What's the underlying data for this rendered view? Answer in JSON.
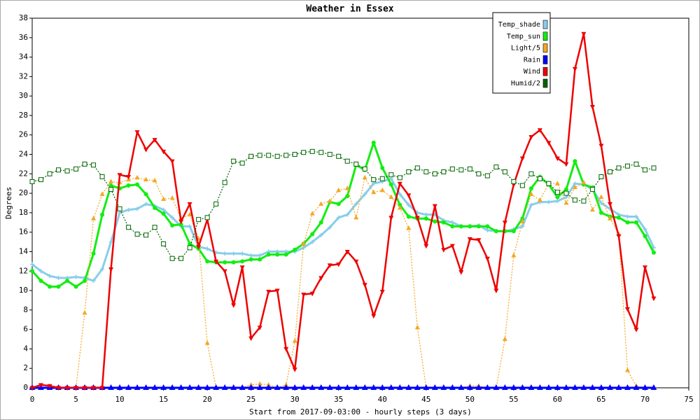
{
  "chart_data": {
    "type": "line",
    "title": "Weather in Essex",
    "x_label": "Start from 2017-09-03:00 - hourly steps (3 days)",
    "y_label": "Degrees",
    "x": [
      0,
      1,
      2,
      3,
      4,
      5,
      6,
      7,
      8,
      9,
      10,
      11,
      12,
      13,
      14,
      15,
      16,
      17,
      18,
      19,
      20,
      21,
      22,
      23,
      24,
      25,
      26,
      27,
      28,
      29,
      30,
      31,
      32,
      33,
      34,
      35,
      36,
      37,
      38,
      39,
      40,
      41,
      42,
      43,
      44,
      45,
      46,
      47,
      48,
      49,
      50,
      51,
      52,
      53,
      54,
      55,
      56,
      57,
      58,
      59,
      60,
      61,
      62,
      63,
      64,
      65,
      66,
      67,
      68,
      69,
      70,
      71
    ],
    "xlim": [
      0,
      75
    ],
    "xticks": [
      0,
      5,
      10,
      15,
      20,
      25,
      30,
      35,
      40,
      45,
      50,
      55,
      60,
      65,
      70,
      75
    ],
    "ylim": [
      0,
      38
    ],
    "yticks": [
      0,
      2,
      4,
      6,
      8,
      10,
      12,
      14,
      16,
      18,
      20,
      22,
      24,
      26,
      28,
      30,
      32,
      34,
      36,
      38
    ],
    "legend": "top right",
    "grid": false,
    "series": [
      {
        "name": "Temp_shade",
        "color": "#87ceeb",
        "values": [
          12.7,
          12.0,
          11.5,
          11.3,
          11.3,
          11.4,
          11.3,
          11.0,
          12.2,
          15.0,
          18.0,
          18.3,
          18.4,
          18.9,
          18.7,
          18.3,
          17.5,
          16.6,
          16.6,
          14.5,
          14.3,
          13.9,
          13.8,
          13.8,
          13.8,
          13.6,
          13.6,
          14.0,
          14.0,
          14.0,
          14.0,
          14.4,
          15.0,
          15.7,
          16.5,
          17.5,
          17.8,
          18.9,
          19.9,
          21.0,
          21.2,
          21.5,
          19.9,
          18.8,
          18.0,
          17.8,
          17.8,
          17.2,
          17.0,
          16.6,
          16.6,
          16.7,
          16.2,
          16.1,
          16.1,
          16.3,
          16.6,
          18.8,
          19.1,
          19.1,
          19.2,
          19.6,
          21.0,
          20.9,
          20.4,
          19.0,
          18.4,
          17.8,
          17.6,
          17.6,
          16.3,
          14.4
        ]
      },
      {
        "name": "Temp_sun",
        "color": "#11ee11",
        "values": [
          12.0,
          11.0,
          10.4,
          10.4,
          11.0,
          10.4,
          11.0,
          13.8,
          17.8,
          20.8,
          20.5,
          20.8,
          20.9,
          19.9,
          18.5,
          17.9,
          16.7,
          16.8,
          14.8,
          14.3,
          13.0,
          12.9,
          12.9,
          12.9,
          13.0,
          13.2,
          13.2,
          13.7,
          13.7,
          13.7,
          14.2,
          14.8,
          15.8,
          17.0,
          19.1,
          18.9,
          19.7,
          22.9,
          22.4,
          25.2,
          22.6,
          20.9,
          18.8,
          17.6,
          17.4,
          17.4,
          17.1,
          17.0,
          16.6,
          16.6,
          16.6,
          16.6,
          16.6,
          16.1,
          16.1,
          16.1,
          17.4,
          20.5,
          21.7,
          20.9,
          19.6,
          20.4,
          23.3,
          20.9,
          20.6,
          18.0,
          17.6,
          17.5,
          17.0,
          17.0,
          15.6,
          13.9
        ]
      },
      {
        "name": "Light/5",
        "color": "#f5a623",
        "values": [
          0,
          0,
          0,
          0,
          0,
          0,
          7.7,
          17.4,
          19.9,
          21.2,
          21.1,
          21.4,
          21.6,
          21.4,
          21.3,
          19.4,
          19.5,
          17.4,
          17.8,
          15.3,
          4.6,
          0,
          0,
          0,
          0,
          0.3,
          0.4,
          0.3,
          0,
          0.3,
          4.8,
          14.8,
          17.9,
          18.9,
          19.2,
          20.3,
          20.5,
          17.5,
          21.6,
          20.1,
          20.3,
          19.6,
          18.5,
          16.4,
          6.2,
          0,
          0,
          0,
          0,
          0,
          0.2,
          0.2,
          0,
          0,
          5.0,
          13.6,
          17.1,
          19.9,
          19.3,
          21.0,
          21.0,
          19.0,
          20.6,
          21.1,
          18.3,
          19.6,
          17.4,
          15.8,
          1.8,
          0.2,
          0,
          0
        ]
      },
      {
        "name": "Rain",
        "color": "#0000ff",
        "values": [
          0,
          0,
          0,
          0,
          0,
          0,
          0,
          0,
          0,
          0,
          0,
          0,
          0,
          0,
          0,
          0,
          0,
          0,
          0,
          0,
          0,
          0,
          0,
          0,
          0,
          0,
          0,
          0,
          0,
          0,
          0,
          0,
          0,
          0,
          0,
          0,
          0,
          0,
          0,
          0,
          0,
          0,
          0,
          0,
          0,
          0,
          0,
          0,
          0,
          0,
          0,
          0,
          0,
          0,
          0,
          0,
          0,
          0,
          0,
          0,
          0,
          0,
          0,
          0,
          0,
          0,
          0,
          0,
          0,
          0,
          0,
          0
        ]
      },
      {
        "name": "Wind",
        "color": "#ee0000",
        "values": [
          0,
          0.3,
          0.2,
          0,
          0,
          0,
          0,
          0,
          0,
          12.2,
          21.9,
          21.7,
          26.3,
          24.5,
          25.5,
          24.3,
          23.3,
          17.1,
          18.9,
          14.5,
          17.3,
          13.0,
          12.0,
          8.5,
          12.4,
          5.1,
          6.2,
          9.9,
          10.0,
          4.0,
          1.9,
          9.6,
          9.7,
          11.3,
          12.6,
          12.7,
          14.0,
          13.0,
          10.6,
          7.4,
          9.9,
          17.5,
          21.0,
          19.8,
          17.5,
          14.6,
          18.7,
          14.2,
          14.6,
          11.9,
          15.3,
          15.2,
          13.3,
          10.0,
          17.0,
          20.9,
          23.6,
          25.8,
          26.5,
          25.2,
          23.6,
          23.0,
          32.8,
          36.4,
          28.9,
          24.9,
          18.9,
          15.6,
          8.1,
          6.0,
          12.4,
          9.2
        ]
      },
      {
        "name": "Humid/2",
        "color": "#006400",
        "values": [
          21.2,
          21.4,
          22.0,
          22.4,
          22.3,
          22.5,
          23.0,
          22.9,
          21.7,
          20.4,
          18.4,
          16.5,
          15.8,
          15.7,
          16.5,
          14.8,
          13.3,
          13.3,
          14.4,
          17.3,
          17.5,
          18.9,
          21.1,
          23.3,
          23.1,
          23.8,
          23.9,
          23.9,
          23.8,
          23.9,
          24.0,
          24.2,
          24.3,
          24.2,
          24.0,
          23.8,
          23.3,
          23.0,
          22.5,
          21.4,
          21.5,
          21.9,
          21.6,
          22.2,
          22.6,
          22.2,
          22.0,
          22.2,
          22.5,
          22.4,
          22.5,
          22.0,
          21.8,
          22.7,
          22.2,
          21.2,
          20.8,
          22.0,
          21.5,
          21.0,
          20.1,
          20.0,
          19.3,
          19.2,
          20.4,
          21.7,
          22.2,
          22.6,
          22.8,
          23.0,
          22.4,
          22.6
        ]
      }
    ]
  }
}
